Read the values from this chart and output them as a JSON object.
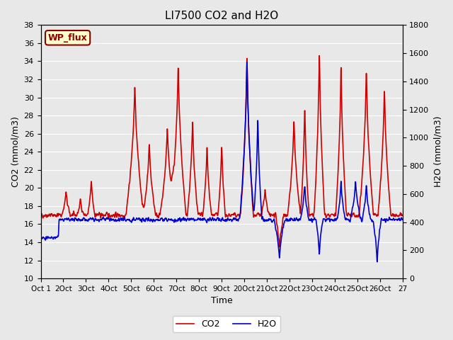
{
  "title": "LI7500 CO2 and H2O",
  "xlabel": "Time",
  "ylabel_left": "CO2 (mmol/m3)",
  "ylabel_right": "H2O (mmol/m3)",
  "ylim_left": [
    10,
    38
  ],
  "ylim_right": [
    0,
    1800
  ],
  "yticks_left": [
    10,
    12,
    14,
    16,
    18,
    20,
    22,
    24,
    26,
    28,
    30,
    32,
    34,
    36,
    38
  ],
  "yticks_right": [
    0,
    200,
    400,
    600,
    800,
    1000,
    1200,
    1400,
    1600,
    1800
  ],
  "xtick_labels": [
    "Oct 1",
    "2Oct",
    "3Oct",
    "4Oct",
    "5Oct",
    "6Oct",
    "7Oct",
    "8Oct",
    "9Oct",
    "20Oct",
    "21Oct",
    "22Oct",
    "23Oct",
    "24Oct",
    "25Oct",
    "26Oct",
    "27"
  ],
  "annotation_text": "WP_flux",
  "legend_co2": "CO2",
  "legend_h2o": "H2O",
  "co2_color": "#cc0000",
  "h2o_color": "#0000cc",
  "bg_color": "#e8e8e8",
  "plot_bg_color": "#e8e8e8",
  "grid_color": "white"
}
